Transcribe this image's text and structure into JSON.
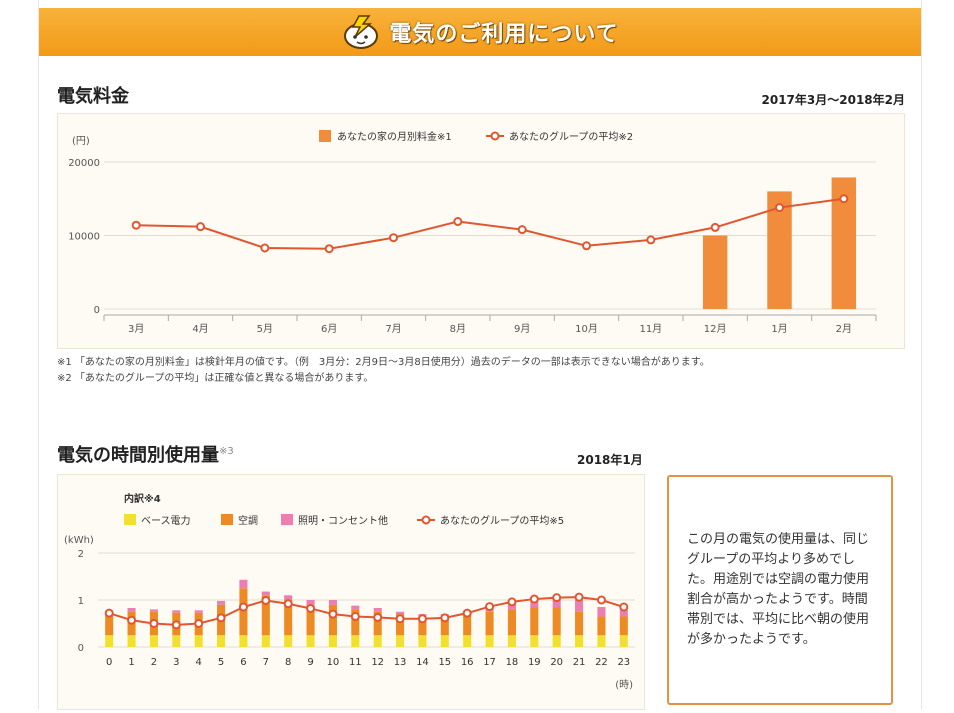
{
  "banner": {
    "title": "電気のご利用について",
    "icon": "lightning-mascot-icon"
  },
  "monthly": {
    "title": "電気料金",
    "period": "2017年3月〜2018年2月",
    "notes": [
      "※1 「あなたの家の月別料金」は検針年月の値です。（例　3月分：2月9日〜3月8日使用分）過去のデータの一部は表示できない場合があります。",
      "※2 「あなたのグループの平均」は正確な値と異なる場合があります。"
    ]
  },
  "hourly": {
    "title": "電気の時間別使用量",
    "title_sup": "※3",
    "period": "2018年1月",
    "breakdown_label": "内訳※4"
  },
  "commentary": "この月の電気の使用量は、同じグループの平均より多めでした。用途別では空調の電力使用割合が高かったようです。時間帯別では、平均に比べ朝の使用が多かったようです。",
  "colors": {
    "bar": "#f08c3c",
    "line": "#e2562f",
    "base": "#f3df2e",
    "aircon": "#ee8a23",
    "lighting": "#ea7fb0",
    "banner": "#f5a623"
  },
  "chart_data": [
    {
      "type": "bar",
      "title": "",
      "ylabel": "(円)",
      "ylim": [
        0,
        20000
      ],
      "yticks": [
        "20000",
        "10000",
        "0"
      ],
      "categories": [
        "3月",
        "4月",
        "5月",
        "6月",
        "7月",
        "8月",
        "9月",
        "10月",
        "11月",
        "12月",
        "1月",
        "2月"
      ],
      "grid": true,
      "legend_position": "top",
      "series": [
        {
          "name": "あなたの家の月別料金※1",
          "kind": "bar",
          "values": [
            null,
            null,
            null,
            null,
            null,
            null,
            null,
            null,
            null,
            10000,
            16000,
            17900
          ]
        },
        {
          "name": "あなたのグループの平均※2",
          "kind": "line",
          "values": [
            11400,
            11200,
            8300,
            8200,
            9700,
            11900,
            10800,
            8600,
            9400,
            11100,
            13800,
            15000
          ]
        }
      ]
    },
    {
      "type": "bar",
      "title": "",
      "ylabel": "(kWh)",
      "xlabel": "(時)",
      "ylim": [
        0,
        2
      ],
      "yticks": [
        "2",
        "1",
        "0"
      ],
      "categories": [
        "0",
        "1",
        "2",
        "3",
        "4",
        "5",
        "6",
        "7",
        "8",
        "9",
        "10",
        "11",
        "12",
        "13",
        "14",
        "15",
        "16",
        "17",
        "18",
        "19",
        "20",
        "21",
        "22",
        "23"
      ],
      "grid": true,
      "legend_position": "top-left",
      "stacked": true,
      "series": [
        {
          "name": "ベース電力",
          "kind": "bar",
          "values": [
            0.25,
            0.25,
            0.25,
            0.25,
            0.25,
            0.25,
            0.25,
            0.25,
            0.25,
            0.25,
            0.25,
            0.25,
            0.25,
            0.25,
            0.25,
            0.25,
            0.25,
            0.25,
            0.25,
            0.25,
            0.25,
            0.25,
            0.25,
            0.25
          ]
        },
        {
          "name": "空調",
          "kind": "bar",
          "values": [
            0.45,
            0.5,
            0.5,
            0.48,
            0.48,
            0.65,
            1.0,
            0.85,
            0.75,
            0.65,
            0.65,
            0.55,
            0.5,
            0.45,
            0.4,
            0.4,
            0.45,
            0.5,
            0.55,
            0.6,
            0.6,
            0.5,
            0.4,
            0.4
          ]
        },
        {
          "name": "照明・コンセント他",
          "kind": "bar",
          "values": [
            0.05,
            0.08,
            0.05,
            0.05,
            0.05,
            0.08,
            0.18,
            0.08,
            0.1,
            0.1,
            0.1,
            0.08,
            0.08,
            0.05,
            0.05,
            0.05,
            0.05,
            0.1,
            0.18,
            0.18,
            0.2,
            0.25,
            0.2,
            0.15
          ]
        },
        {
          "name": "あなたのグループの平均※5",
          "kind": "line",
          "values": [
            0.72,
            0.57,
            0.5,
            0.47,
            0.5,
            0.62,
            0.85,
            0.99,
            0.92,
            0.82,
            0.7,
            0.65,
            0.63,
            0.6,
            0.6,
            0.62,
            0.72,
            0.86,
            0.96,
            1.02,
            1.05,
            1.06,
            1.0,
            0.85
          ]
        }
      ]
    }
  ]
}
